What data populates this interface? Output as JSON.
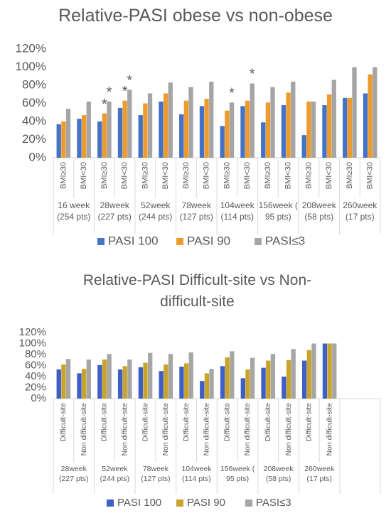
{
  "chart_data": [
    {
      "type": "bar",
      "title": "Relative-PASI obese vs non-obese",
      "categories": [
        "BMI≥30",
        "BMI<30",
        "BMI≥30",
        "BMI<30",
        "BMI≥30",
        "BMI<30",
        "BMI≥30",
        "BMI<30",
        "BMI≥30",
        "BMI<30",
        "BMI≥30",
        "BMI<30",
        "BMI≥30",
        "BMI<30",
        "BMI≥30",
        "BMI<30"
      ],
      "groups": [
        "16 week (254 pts)",
        "28week (227 pts)",
        "52week (244 pts)",
        "78week (127 pts)",
        "104week (114 pts)",
        "156week ( 95 pts)",
        "208week (58 pts)",
        "260week (17 pts)"
      ],
      "series": [
        {
          "name": "PASI 100",
          "color": "#4472c4",
          "values": [
            37,
            43,
            40,
            55,
            47,
            62,
            48,
            57,
            35,
            57,
            39,
            58,
            25,
            58,
            66,
            71
          ]
        },
        {
          "name": "PASI 90",
          "color": "#ed9b2f",
          "values": [
            40,
            47,
            49,
            63,
            60,
            71,
            63,
            65,
            52,
            63,
            61,
            72,
            62,
            70,
            66,
            92
          ]
        },
        {
          "name": "PASI≤3",
          "color": "#a5a5a5",
          "values": [
            54,
            62,
            62,
            75,
            71,
            83,
            78,
            84,
            61,
            82,
            78,
            84,
            62,
            86,
            100,
            100
          ]
        }
      ],
      "annotations": [
        {
          "text": "*",
          "category": 2,
          "series": 1
        },
        {
          "text": "*",
          "category": 2,
          "series": 2
        },
        {
          "text": "*",
          "category": 3,
          "series": 1
        },
        {
          "text": "*",
          "category": 3,
          "series": 2
        },
        {
          "text": "*",
          "category": 8,
          "series": 2
        },
        {
          "text": "*",
          "category": 9,
          "series": 2
        }
      ],
      "ylim": [
        0,
        120
      ],
      "yticks": [
        {
          "value": 0,
          "label": "0%"
        },
        {
          "value": 20,
          "label": "20%"
        },
        {
          "value": 40,
          "label": "40%"
        },
        {
          "value": 60,
          "label": "60%"
        },
        {
          "value": 80,
          "label": "80%"
        },
        {
          "value": 100,
          "label": "100%"
        },
        {
          "value": 120,
          "label": "120%"
        }
      ],
      "grid": false,
      "legend": "bottom"
    },
    {
      "type": "bar",
      "title": "Relative-PASI Difficult-site vs Non-difficult-site",
      "categories": [
        "Difficult-site",
        "Non difficult-site",
        "Difficult-site",
        "Non difficult-site",
        "Difficult-site",
        "Non difficult-site",
        "Difficult-site",
        "Non difficult-site",
        "Difficult-site",
        "Non difficult-site",
        "Difficult-site",
        "Non difficult-site",
        "Difficult-site",
        "Non difficult-site"
      ],
      "groups": [
        "28week (227 pts)",
        "52week (244 pts)",
        "78week (127 pts)",
        "104week (114 pts)",
        "156week ( 95 pts)",
        "208week (58 pts)",
        "260week (17 pts)"
      ],
      "series": [
        {
          "name": "PASI 100",
          "color": "#3f5fc8",
          "values": [
            53,
            46,
            61,
            53,
            57,
            50,
            58,
            32,
            59,
            37,
            56,
            40,
            69,
            100
          ]
        },
        {
          "name": "PASI 90",
          "color": "#c9a42a",
          "values": [
            62,
            54,
            71,
            59,
            65,
            62,
            64,
            46,
            75,
            53,
            69,
            70,
            88,
            100
          ]
        },
        {
          "name": "PASI≤3",
          "color": "#a6a6a6",
          "values": [
            72,
            71,
            81,
            71,
            83,
            81,
            84,
            54,
            86,
            74,
            81,
            90,
            100,
            100
          ]
        }
      ],
      "ylim": [
        0,
        120
      ],
      "yticks": [
        {
          "value": 0,
          "label": "0%"
        },
        {
          "value": 20,
          "label": "20%"
        },
        {
          "value": 40,
          "label": "40%"
        },
        {
          "value": 60,
          "label": "60%"
        },
        {
          "value": 80,
          "label": "80%"
        },
        {
          "value": 100,
          "label": "100%"
        },
        {
          "value": 120,
          "label": "120%"
        }
      ],
      "grid": false,
      "legend": "bottom"
    }
  ]
}
